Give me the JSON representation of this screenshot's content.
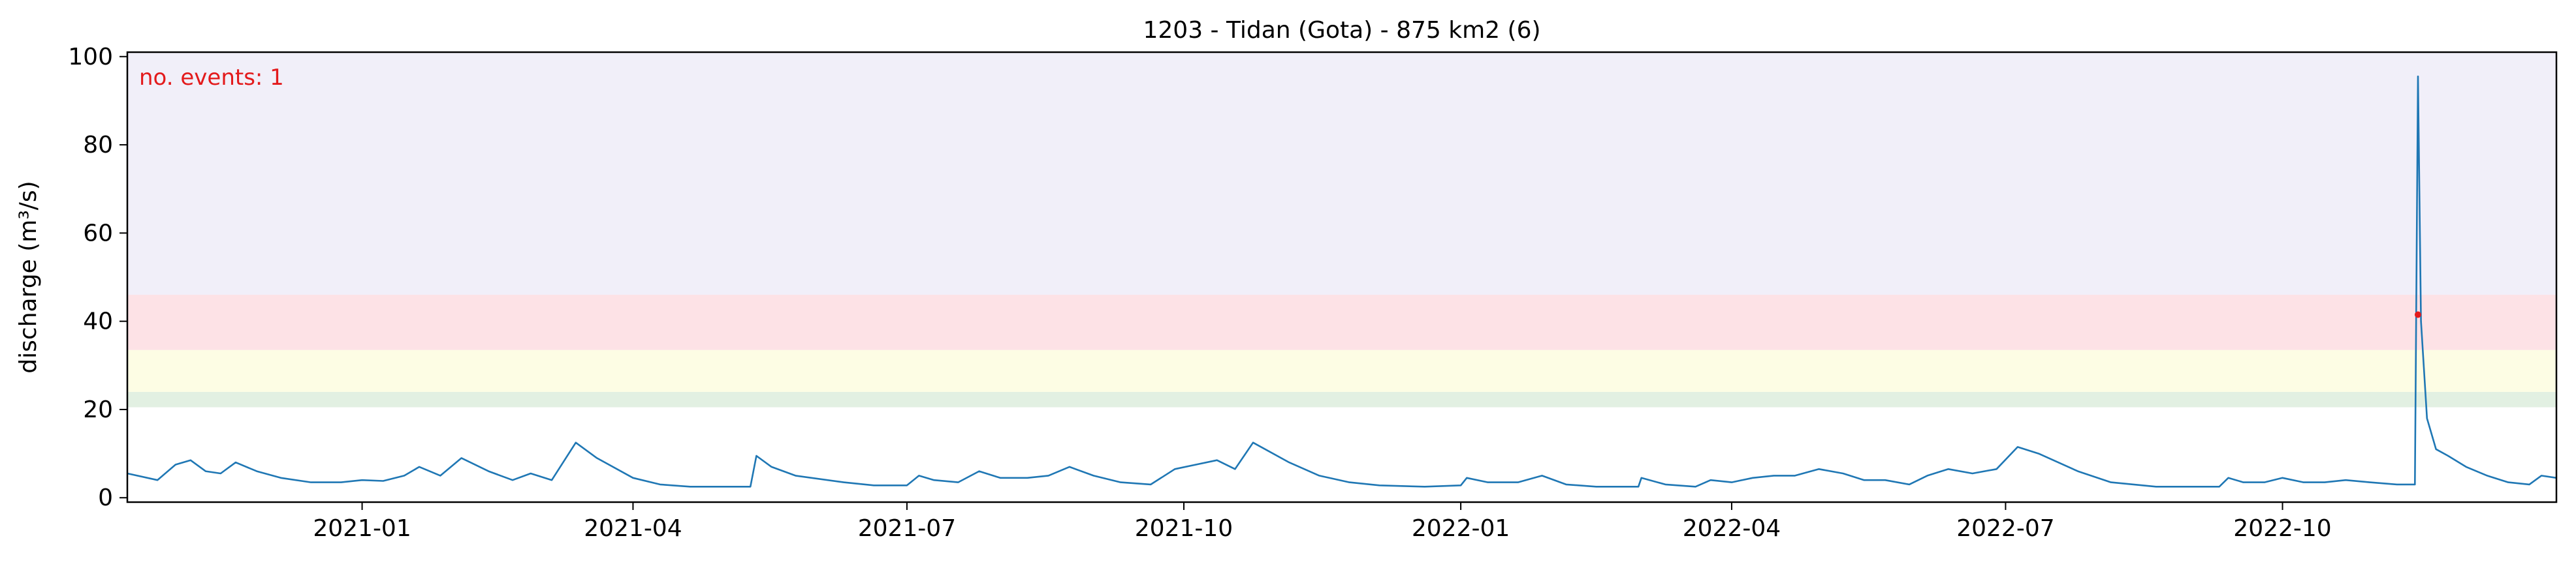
{
  "chart_data": {
    "type": "line",
    "title": "1203 - Tidan (Gota) - 875 km2 (6)",
    "xlabel": "",
    "ylabel": "discharge (m³/s)",
    "xlim": [
      "2020-10-15",
      "2022-12-31"
    ],
    "ylim": [
      -1,
      101
    ],
    "x_ticks": [
      "2021-01",
      "2021-04",
      "2021-07",
      "2021-10",
      "2022-01",
      "2022-04",
      "2022-07",
      "2022-10"
    ],
    "y_ticks": [
      0,
      20,
      40,
      60,
      80,
      100
    ],
    "grid": false,
    "bands": [
      {
        "from": 20.5,
        "to": 24.0,
        "color": "#e2f0e2"
      },
      {
        "from": 24.0,
        "to": 33.5,
        "color": "#fdfde4"
      },
      {
        "from": 33.5,
        "to": 46.0,
        "color": "#fde2e6"
      },
      {
        "from": 46.0,
        "to": 101,
        "color": "#f1eff9"
      }
    ],
    "annotation": {
      "text": "no. events: 1",
      "color": "#e31a1c"
    },
    "event_marker": {
      "x": "2022-11-15",
      "y": 41.5,
      "color": "#e31a1c"
    },
    "series": [
      {
        "color": "#1f77b4",
        "points": [
          [
            "2020-10-15",
            5.5
          ],
          [
            "2020-10-25",
            4.0
          ],
          [
            "2020-10-31",
            7.5
          ],
          [
            "2020-11-05",
            8.5
          ],
          [
            "2020-11-10",
            6.0
          ],
          [
            "2020-11-15",
            5.5
          ],
          [
            "2020-11-20",
            8.0
          ],
          [
            "2020-11-27",
            6.0
          ],
          [
            "2020-12-05",
            4.5
          ],
          [
            "2020-12-15",
            3.5
          ],
          [
            "2020-12-25",
            3.5
          ],
          [
            "2021-01-01",
            4.0
          ],
          [
            "2021-01-08",
            3.8
          ],
          [
            "2021-01-15",
            5.0
          ],
          [
            "2021-01-20",
            7.0
          ],
          [
            "2021-01-27",
            5.0
          ],
          [
            "2021-02-03",
            9.0
          ],
          [
            "2021-02-12",
            6.0
          ],
          [
            "2021-02-20",
            4.0
          ],
          [
            "2021-02-26",
            5.5
          ],
          [
            "2021-03-05",
            4.0
          ],
          [
            "2021-03-13",
            12.5
          ],
          [
            "2021-03-20",
            9.0
          ],
          [
            "2021-04-01",
            4.5
          ],
          [
            "2021-04-10",
            3.0
          ],
          [
            "2021-04-20",
            2.5
          ],
          [
            "2021-05-10",
            2.5
          ],
          [
            "2021-05-12",
            9.5
          ],
          [
            "2021-05-17",
            7.0
          ],
          [
            "2021-05-25",
            5.0
          ],
          [
            "2021-06-10",
            3.5
          ],
          [
            "2021-06-20",
            2.8
          ],
          [
            "2021-07-01",
            2.8
          ],
          [
            "2021-07-05",
            5.0
          ],
          [
            "2021-07-10",
            4.0
          ],
          [
            "2021-07-18",
            3.5
          ],
          [
            "2021-07-25",
            6.0
          ],
          [
            "2021-08-01",
            4.5
          ],
          [
            "2021-08-10",
            4.5
          ],
          [
            "2021-08-17",
            5.0
          ],
          [
            "2021-08-24",
            7.0
          ],
          [
            "2021-09-01",
            5.0
          ],
          [
            "2021-09-10",
            3.5
          ],
          [
            "2021-09-20",
            3.0
          ],
          [
            "2021-09-28",
            6.5
          ],
          [
            "2021-10-05",
            7.5
          ],
          [
            "2021-10-12",
            8.5
          ],
          [
            "2021-10-18",
            6.5
          ],
          [
            "2021-10-24",
            12.5
          ],
          [
            "2021-11-05",
            8.0
          ],
          [
            "2021-11-15",
            5.0
          ],
          [
            "2021-11-25",
            3.5
          ],
          [
            "2021-12-05",
            2.8
          ],
          [
            "2021-12-20",
            2.5
          ],
          [
            "2022-01-01",
            2.8
          ],
          [
            "2022-01-03",
            4.5
          ],
          [
            "2022-01-10",
            3.5
          ],
          [
            "2022-01-20",
            3.5
          ],
          [
            "2022-01-28",
            5.0
          ],
          [
            "2022-02-05",
            3.0
          ],
          [
            "2022-02-15",
            2.5
          ],
          [
            "2022-03-01",
            2.5
          ],
          [
            "2022-03-02",
            4.5
          ],
          [
            "2022-03-10",
            3.0
          ],
          [
            "2022-03-20",
            2.5
          ],
          [
            "2022-03-25",
            4.0
          ],
          [
            "2022-04-01",
            3.5
          ],
          [
            "2022-04-08",
            4.5
          ],
          [
            "2022-04-15",
            5.0
          ],
          [
            "2022-04-22",
            5.0
          ],
          [
            "2022-04-30",
            6.5
          ],
          [
            "2022-05-08",
            5.5
          ],
          [
            "2022-05-15",
            4.0
          ],
          [
            "2022-05-22",
            4.0
          ],
          [
            "2022-05-30",
            3.0
          ],
          [
            "2022-06-05",
            5.0
          ],
          [
            "2022-06-12",
            6.5
          ],
          [
            "2022-06-20",
            5.5
          ],
          [
            "2022-06-28",
            6.5
          ],
          [
            "2022-07-05",
            11.5
          ],
          [
            "2022-07-12",
            10.0
          ],
          [
            "2022-07-25",
            6.0
          ],
          [
            "2022-08-05",
            3.5
          ],
          [
            "2022-08-20",
            2.5
          ],
          [
            "2022-09-10",
            2.5
          ],
          [
            "2022-09-13",
            4.5
          ],
          [
            "2022-09-18",
            3.5
          ],
          [
            "2022-09-25",
            3.5
          ],
          [
            "2022-10-01",
            4.5
          ],
          [
            "2022-10-08",
            3.5
          ],
          [
            "2022-10-15",
            3.5
          ],
          [
            "2022-10-22",
            4.0
          ],
          [
            "2022-10-30",
            3.5
          ],
          [
            "2022-11-08",
            3.0
          ],
          [
            "2022-11-14",
            3.0
          ],
          [
            "2022-11-15",
            95.5
          ],
          [
            "2022-11-16",
            40.0
          ],
          [
            "2022-11-18",
            18.0
          ],
          [
            "2022-11-21",
            11.0
          ],
          [
            "2022-11-25",
            9.5
          ],
          [
            "2022-12-01",
            7.0
          ],
          [
            "2022-12-08",
            5.0
          ],
          [
            "2022-12-15",
            3.5
          ],
          [
            "2022-12-22",
            3.0
          ],
          [
            "2022-12-26",
            5.0
          ],
          [
            "2022-12-31",
            4.5
          ]
        ]
      }
    ]
  }
}
